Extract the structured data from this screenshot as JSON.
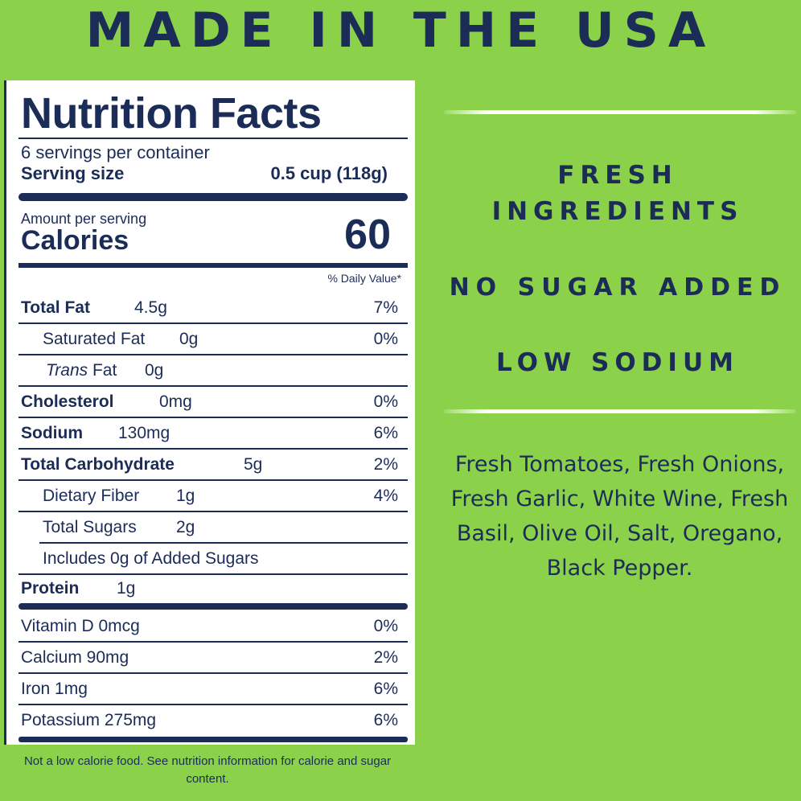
{
  "headline": "MADE IN THE USA",
  "nutrition": {
    "title": "Nutrition Facts",
    "servings": "6 servings per container",
    "serving_size_label": "Serving size",
    "serving_size_value": "0.5 cup (118g)",
    "amount_per_serving": "Amount per serving",
    "calories_label": "Calories",
    "calories_value": "60",
    "daily_value_header": "% Daily Value*",
    "rows": [
      {
        "name": "Total Fat",
        "amount": "4.5g",
        "dv": "7%"
      },
      {
        "name": "Saturated Fat",
        "amount": "0g",
        "dv": "0%"
      },
      {
        "name_italic": "Trans",
        "name": "Fat",
        "amount": "0g",
        "dv": ""
      },
      {
        "name": "Cholesterol",
        "amount": "0mg",
        "dv": "0%"
      },
      {
        "name": "Sodium",
        "amount": "130mg",
        "dv": "6%"
      },
      {
        "name": "Total Carbohydrate",
        "amount": "5g",
        "dv": "2%"
      },
      {
        "name": "Dietary Fiber",
        "amount": "1g",
        "dv": "4%"
      },
      {
        "name": "Total Sugars",
        "amount": "2g",
        "dv": ""
      },
      {
        "name": "Includes 0g of Added Sugars",
        "amount": "",
        "dv": ""
      },
      {
        "name": "Protein",
        "amount": "1g",
        "dv": ""
      }
    ],
    "vitamins": [
      {
        "name": "Vitamin D 0mcg",
        "dv": "0%"
      },
      {
        "name": "Calcium 90mg",
        "dv": "2%"
      },
      {
        "name": "Iron 1mg",
        "dv": "6%"
      },
      {
        "name": "Potassium 275mg",
        "dv": "6%"
      }
    ],
    "footnote": "Not a low calorie food. See nutrition information for calorie and sugar content."
  },
  "claims": {
    "fresh_line1": "FRESH",
    "fresh_line2": "INGREDIENTS",
    "no_sugar": "NO SUGAR ADDED",
    "low_sodium": "LOW SODIUM"
  },
  "ingredients": "Fresh Tomatoes, Fresh Onions, Fresh Garlic, White Wine, Fresh Basil, Olive Oil, Salt, Oregano, Black Pepper.",
  "colors": {
    "background": "#8bd24a",
    "navy": "#1b2c57",
    "panel": "#ffffff"
  }
}
